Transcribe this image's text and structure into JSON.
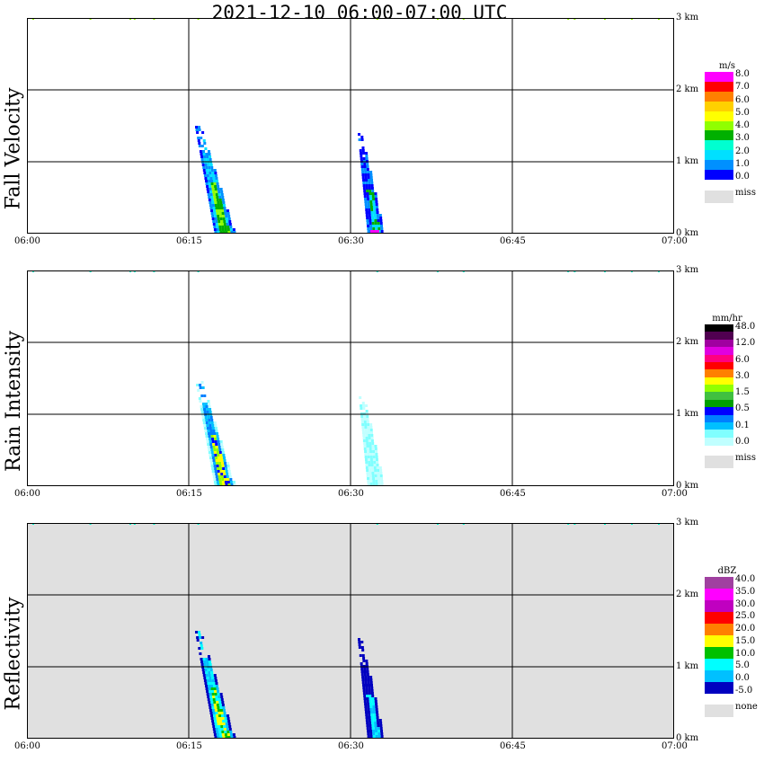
{
  "title": "2021-12-10   06:00-07:00 UTC",
  "x_ticks": [
    "06:00",
    "06:15",
    "06:30",
    "06:45",
    "07:00"
  ],
  "y_ticks": [
    "0 km",
    "1 km",
    "2 km",
    "3 km"
  ],
  "panels": [
    {
      "name": "Fall Velocity",
      "unit": "m/s",
      "colors": [
        "#ff00ff",
        "#ff0000",
        "#ff8000",
        "#ffd000",
        "#ffff00",
        "#90ff00",
        "#00b000",
        "#00ffd0",
        "#00e0ff",
        "#0090ff",
        "#0000ff"
      ],
      "labels": [
        "8.0",
        "7.0",
        "6.0",
        "5.0",
        "4.0",
        "3.0",
        "2.0",
        "1.0",
        "0.0"
      ],
      "missing_label": "miss",
      "background": "#ffffff"
    },
    {
      "name": "Rain Intensity",
      "unit": "mm/hr",
      "colors": [
        "#000000",
        "#500050",
        "#a000a0",
        "#e000e0",
        "#ff0080",
        "#ff0000",
        "#ff8000",
        "#ffff00",
        "#90ff00",
        "#40c040",
        "#00a000",
        "#0000ff",
        "#0080ff",
        "#00c0ff",
        "#80ffff",
        "#c0ffff"
      ],
      "labels": [
        "48.0",
        "12.0",
        "6.0",
        "3.0",
        "1.5",
        "0.5",
        "0.1",
        "0.0"
      ],
      "missing_label": "miss",
      "background": "#ffffff"
    },
    {
      "name": "Reflectivity",
      "unit": "dBZ",
      "colors": [
        "#a040a0",
        "#ff00ff",
        "#c000c0",
        "#ff0000",
        "#ff8000",
        "#ffff00",
        "#00c000",
        "#00ffff",
        "#00c0ff",
        "#0000c0"
      ],
      "labels": [
        "40.0",
        "35.0",
        "30.0",
        "25.0",
        "20.0",
        "15.0",
        "10.0",
        "5.0",
        "0.0",
        "-5.0"
      ],
      "missing_label": "none",
      "background": "#e0e0e0"
    }
  ],
  "chart_data": {
    "type": "heatmap",
    "x_range": [
      "06:00",
      "07:00"
    ],
    "y_range_km": [
      0,
      3
    ],
    "grid": true,
    "series": [
      {
        "panel": "Fall Velocity",
        "rain_events": [
          {
            "start": "06:15",
            "end": "06:19",
            "top_km": 1.5,
            "peak_value_ms": 4.5
          },
          {
            "start": "06:30",
            "end": "06:33",
            "top_km": 1.4,
            "peak_value_ms": 8.0
          }
        ],
        "high_level_speckle_km": 3.0
      },
      {
        "panel": "Rain Intensity",
        "rain_events": [
          {
            "start": "06:15",
            "end": "06:19",
            "top_km": 1.5,
            "peak_value_mmhr": 3.0
          },
          {
            "start": "06:30",
            "end": "06:33",
            "top_km": 1.4,
            "peak_value_mmhr": 0.1
          }
        ],
        "high_level_speckle_km": 3.0
      },
      {
        "panel": "Reflectivity",
        "rain_events": [
          {
            "start": "06:15",
            "end": "06:19",
            "top_km": 1.5,
            "peak_value_dbz": 20.0
          },
          {
            "start": "06:30",
            "end": "06:33",
            "top_km": 1.4,
            "peak_value_dbz": 10.0
          }
        ],
        "high_level_speckle_km": 3.0
      }
    ]
  }
}
